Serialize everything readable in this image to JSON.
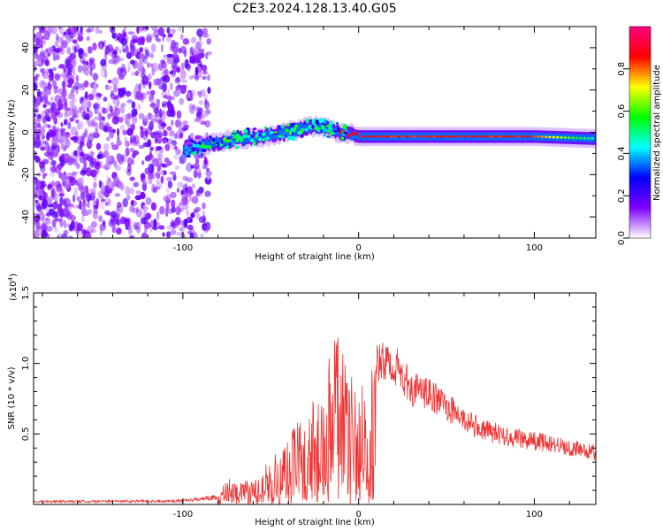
{
  "title": "C2E3.2024.128.13.40.G05",
  "chart_data": [
    {
      "type": "heatmap",
      "xlabel": "Height of straight line (km)",
      "ylabel": "Frequency (Hz)",
      "xlim": [
        -185,
        135
      ],
      "ylim": [
        -50,
        50
      ],
      "x_ticks": [
        "-100",
        "0",
        "100"
      ],
      "y_ticks": [
        "-40",
        "-20",
        "0",
        "20",
        "40"
      ],
      "colorbar": {
        "label": "Normalized spectral amplitude",
        "range": [
          0,
          1
        ],
        "ticks": [
          "0.0",
          "0.2",
          "0.4",
          "0.6",
          "0.8"
        ],
        "colors": [
          "#ffffff",
          "#8000ff",
          "#0000ff",
          "#00ffff",
          "#00ff00",
          "#ffff00",
          "#ff0000",
          "#ff0080"
        ]
      },
      "ridge": [
        {
          "x": -100,
          "y": -8.5
        },
        {
          "x": -75,
          "y": -4
        },
        {
          "x": -50,
          "y": -1.5
        },
        {
          "x": -25,
          "y": 3
        },
        {
          "x": -10,
          "y": 0
        },
        {
          "x": 0,
          "y": -2
        },
        {
          "x": 50,
          "y": -2
        },
        {
          "x": 100,
          "y": -2
        },
        {
          "x": 135,
          "y": -3
        }
      ],
      "noise_region_x": [
        -185,
        -85
      ]
    },
    {
      "type": "line",
      "xlabel": "Height of straight line (km)",
      "ylabel": "SNR (10 * v/v)",
      "y_multiplier": "(x10",
      "y_exponent": "4",
      "y_multiplier_close": ")",
      "xlim": [
        -185,
        135
      ],
      "ylim": [
        0,
        15000
      ],
      "x_ticks": [
        "-100",
        "0",
        "100"
      ],
      "y_ticks": [
        "0.5",
        "1.0",
        "1.5"
      ],
      "color": "#ee3333",
      "envelope": [
        {
          "x": -185,
          "y": 200
        },
        {
          "x": -100,
          "y": 250
        },
        {
          "x": -80,
          "y": 500
        },
        {
          "x": -75,
          "y": 1800
        },
        {
          "x": -60,
          "y": 1500
        },
        {
          "x": -50,
          "y": 3000
        },
        {
          "x": -40,
          "y": 4500
        },
        {
          "x": -30,
          "y": 6000
        },
        {
          "x": -20,
          "y": 8000
        },
        {
          "x": -15,
          "y": 12000
        },
        {
          "x": -5,
          "y": 8500
        },
        {
          "x": 0,
          "y": 8000
        },
        {
          "x": 10,
          "y": 10000
        },
        {
          "x": 20,
          "y": 10000
        },
        {
          "x": 30,
          "y": 8200
        },
        {
          "x": 40,
          "y": 7800
        },
        {
          "x": 50,
          "y": 7000
        },
        {
          "x": 60,
          "y": 6000
        },
        {
          "x": 70,
          "y": 5300
        },
        {
          "x": 80,
          "y": 5000
        },
        {
          "x": 90,
          "y": 4700
        },
        {
          "x": 100,
          "y": 4500
        },
        {
          "x": 110,
          "y": 4300
        },
        {
          "x": 120,
          "y": 4000
        },
        {
          "x": 135,
          "y": 3700
        }
      ]
    }
  ]
}
